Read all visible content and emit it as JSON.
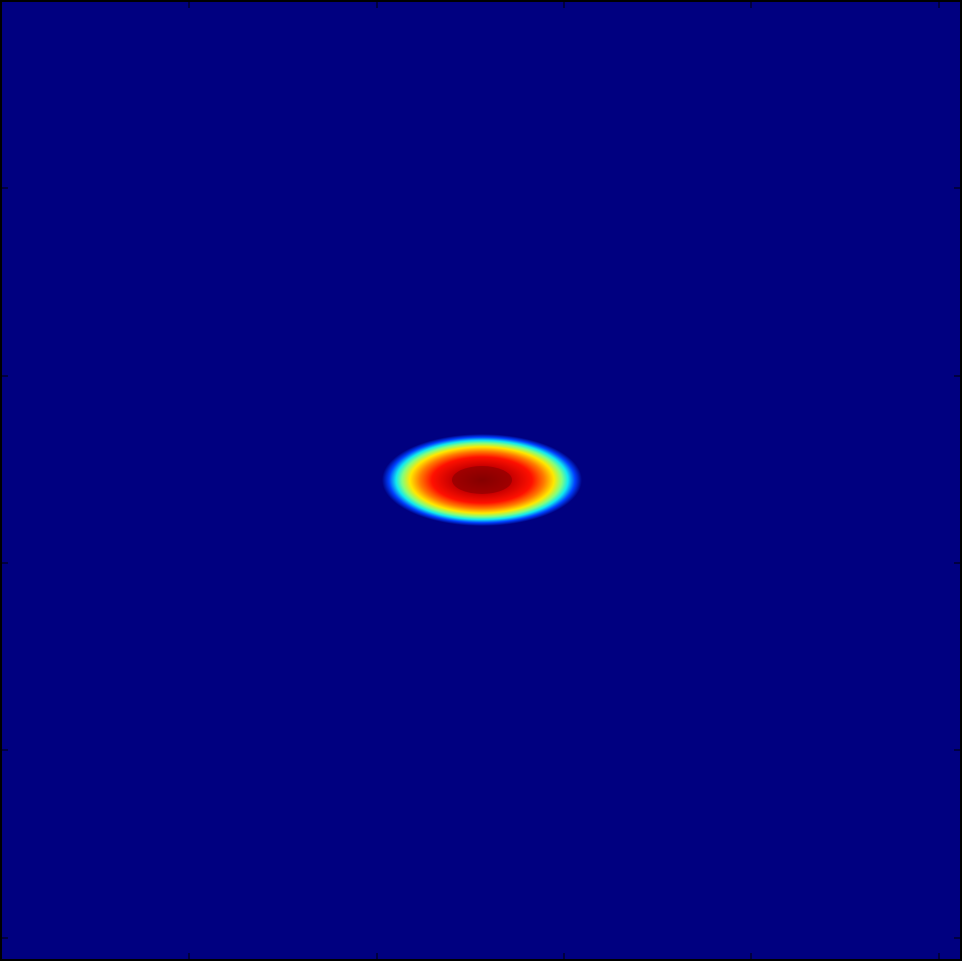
{
  "chart_data": {
    "type": "heatmap"
  }
}
